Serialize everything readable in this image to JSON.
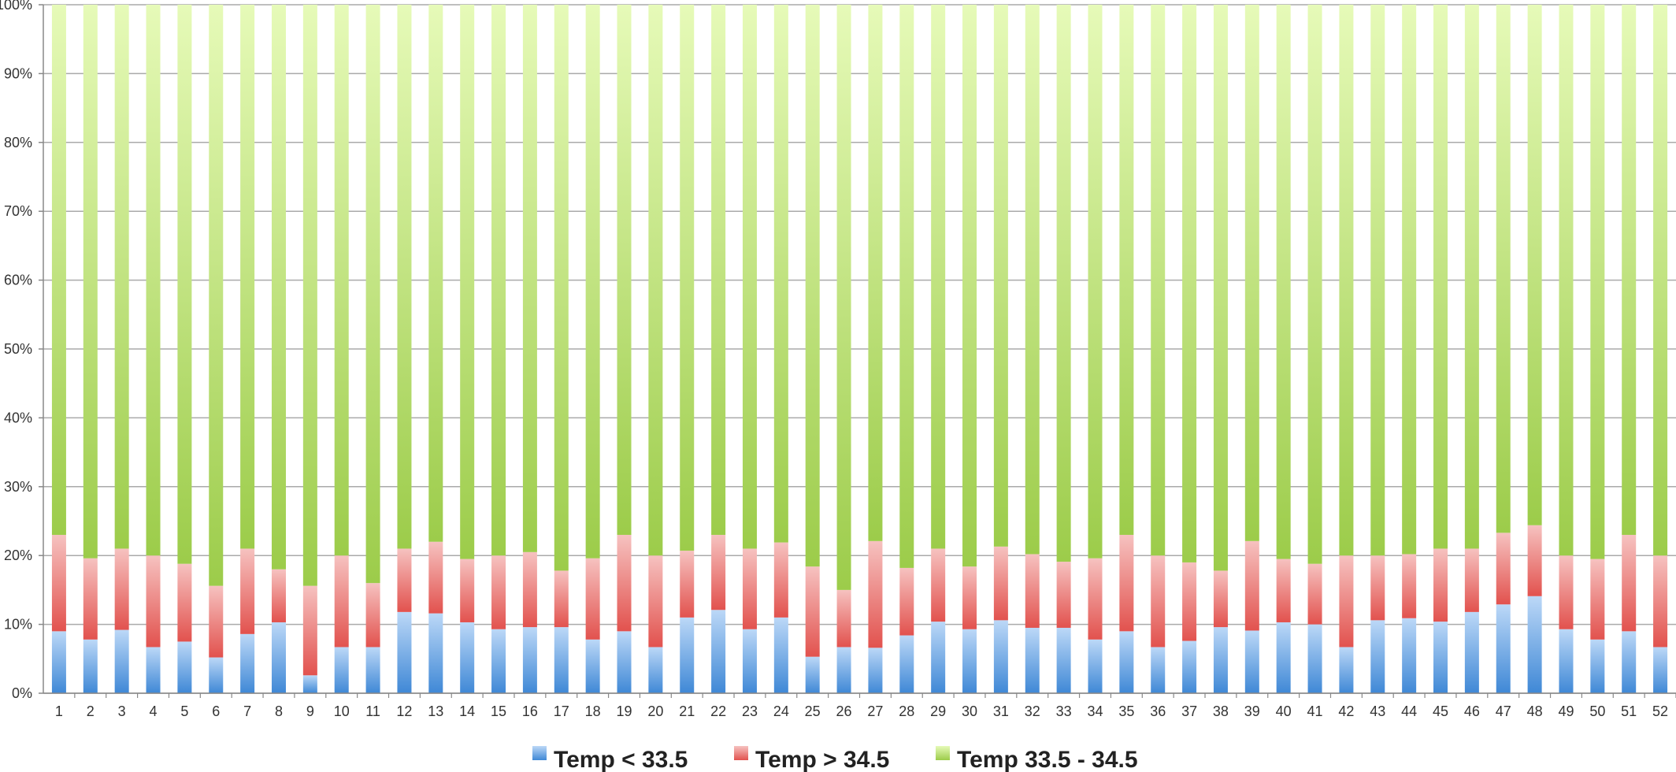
{
  "colors": {
    "blue_top": "#bcd8f7",
    "blue_bottom": "#3f88d6",
    "red_top": "#f6c2c0",
    "red_bottom": "#e2524e",
    "green_top": "#e6fab8",
    "green_bottom": "#9ccc4a",
    "grid": "#aaaaaa",
    "axis": "#888888"
  },
  "chart_data": {
    "type": "bar",
    "stacked": true,
    "percent_stacked": true,
    "title": "",
    "xlabel": "",
    "ylabel": "",
    "ylim": [
      0,
      100
    ],
    "y_tick_labels": [
      "0%",
      "10%",
      "20%",
      "30%",
      "40%",
      "50%",
      "60%",
      "70%",
      "80%",
      "90%",
      "100%"
    ],
    "grid": true,
    "legend_position": "bottom",
    "categories": [
      "1",
      "2",
      "3",
      "4",
      "5",
      "6",
      "7",
      "8",
      "9",
      "10",
      "11",
      "12",
      "13",
      "14",
      "15",
      "16",
      "17",
      "18",
      "19",
      "20",
      "21",
      "22",
      "23",
      "24",
      "25",
      "26",
      "27",
      "28",
      "29",
      "30",
      "31",
      "32",
      "33",
      "34",
      "35",
      "36",
      "37",
      "38",
      "39",
      "40",
      "41",
      "42",
      "43",
      "44",
      "45",
      "46",
      "47",
      "48",
      "49",
      "50",
      "51",
      "52"
    ],
    "series": [
      {
        "name": "Temp < 33.5",
        "color_key": "blue",
        "values": [
          9,
          7.8,
          9.2,
          6.7,
          7.5,
          5.2,
          8.6,
          10.3,
          2.6,
          6.7,
          6.7,
          11.8,
          11.6,
          10.3,
          9.3,
          9.6,
          9.6,
          7.8,
          9,
          6.7,
          11,
          12.1,
          9.3,
          11,
          5.3,
          6.7,
          6.6,
          8.4,
          10.4,
          9.3,
          10.6,
          9.5,
          9.5,
          7.8,
          9,
          6.7,
          7.6,
          9.6,
          9.1,
          10.3,
          10,
          6.7,
          10.6,
          10.9,
          10.4,
          11.8,
          12.9,
          14.1,
          9.3,
          7.8,
          9,
          6.7
        ]
      },
      {
        "name": "Temp > 34.5",
        "color_key": "red",
        "values": [
          14,
          11.8,
          11.8,
          13.3,
          11.3,
          10.4,
          12.4,
          7.7,
          13,
          13.3,
          9.3,
          9.2,
          10.4,
          9.2,
          10.7,
          10.9,
          8.2,
          11.8,
          14,
          13.3,
          9.7,
          10.9,
          11.7,
          10.9,
          13.1,
          8.3,
          15.5,
          9.8,
          10.6,
          9.1,
          10.7,
          10.7,
          9.6,
          11.8,
          14,
          13.3,
          11.4,
          8.2,
          13,
          9.2,
          8.8,
          13.3,
          9.4,
          9.3,
          10.6,
          9.2,
          10.4,
          10.3,
          10.7,
          11.7,
          14,
          13.3
        ]
      },
      {
        "name": "Temp 33.5 - 34.5",
        "color_key": "green",
        "values": [
          77,
          80.4,
          79,
          80,
          81.2,
          84.4,
          79,
          82,
          84.4,
          80,
          84,
          79,
          78,
          80.5,
          80,
          79.5,
          82.2,
          80.4,
          77,
          80,
          79.3,
          77,
          79,
          78.1,
          81.6,
          85,
          77.9,
          81.8,
          79,
          81.6,
          78.7,
          79.8,
          80.9,
          80.4,
          77,
          80,
          81,
          82.2,
          77.9,
          80.5,
          81.2,
          80,
          80,
          79.8,
          79,
          79,
          76.7,
          75.6,
          80,
          80.5,
          77,
          80
        ]
      }
    ]
  }
}
